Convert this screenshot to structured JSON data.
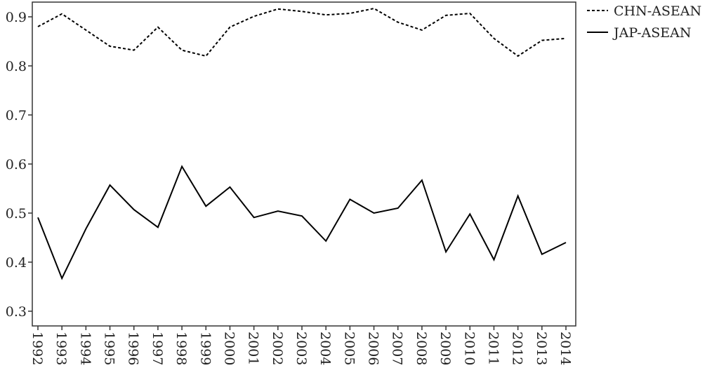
{
  "chart_data": {
    "type": "line",
    "categories": [
      "1992",
      "1993",
      "1994",
      "1995",
      "1996",
      "1997",
      "1998",
      "1999",
      "2000",
      "2001",
      "2002",
      "2003",
      "2004",
      "2005",
      "2006",
      "2007",
      "2008",
      "2009",
      "2010",
      "2011",
      "2012",
      "2013",
      "2014"
    ],
    "series": [
      {
        "name": "CHN-ASEAN",
        "color": "#000000",
        "dash": "dashed",
        "values": [
          0.88,
          0.906,
          0.873,
          0.84,
          0.832,
          0.879,
          0.832,
          0.82,
          0.879,
          0.901,
          0.916,
          0.911,
          0.904,
          0.907,
          0.917,
          0.889,
          0.873,
          0.903,
          0.907,
          0.856,
          0.82,
          0.852,
          0.856
        ]
      },
      {
        "name": "JAP-ASEAN",
        "color": "#000000",
        "dash": "solid",
        "values": [
          0.491,
          0.367,
          0.468,
          0.557,
          0.507,
          0.471,
          0.595,
          0.514,
          0.553,
          0.491,
          0.504,
          0.494,
          0.443,
          0.528,
          0.5,
          0.51,
          0.567,
          0.421,
          0.498,
          0.405,
          0.535,
          0.416,
          0.44
        ]
      }
    ],
    "ylim": [
      0.27,
      0.93
    ],
    "yticks": [
      0.3,
      0.4,
      0.5,
      0.6,
      0.7,
      0.8,
      0.9
    ],
    "legend": "outside-right-top"
  }
}
